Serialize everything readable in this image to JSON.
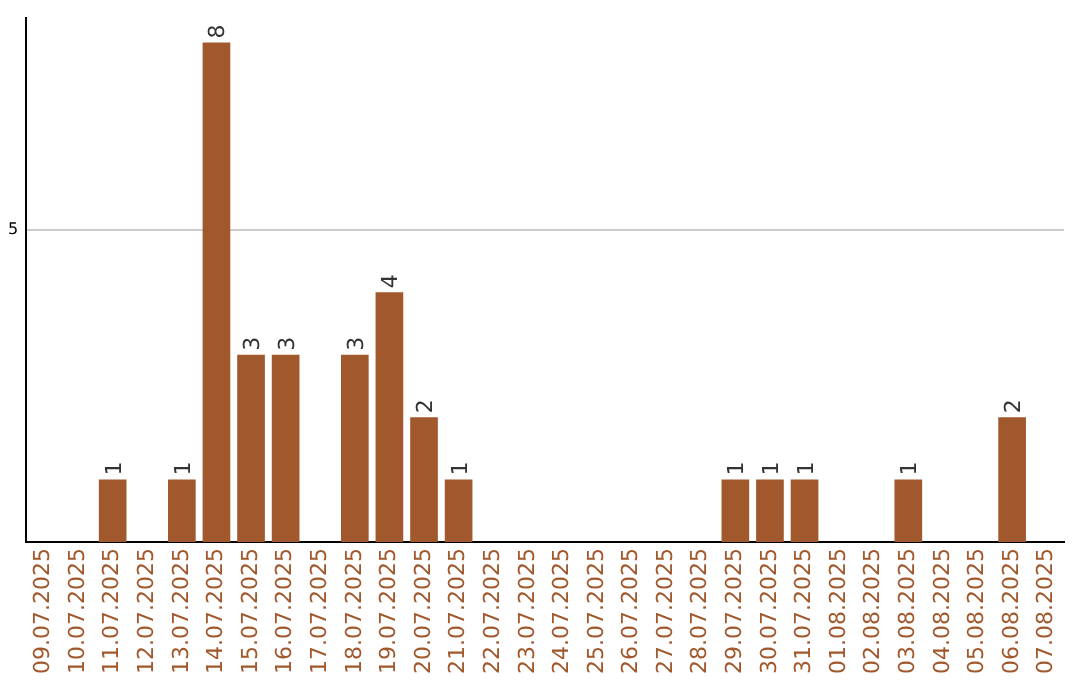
{
  "chart_data": {
    "type": "bar",
    "categories": [
      "09.07.2025",
      "10.07.2025",
      "11.07.2025",
      "12.07.2025",
      "13.07.2025",
      "14.07.2025",
      "15.07.2025",
      "16.07.2025",
      "17.07.2025",
      "18.07.2025",
      "19.07.2025",
      "20.07.2025",
      "21.07.2025",
      "22.07.2025",
      "23.07.2025",
      "24.07.2025",
      "25.07.2025",
      "26.07.2025",
      "27.07.2025",
      "28.07.2025",
      "29.07.2025",
      "30.07.2025",
      "31.07.2025",
      "01.08.2025",
      "02.08.2025",
      "03.08.2025",
      "04.08.2025",
      "05.08.2025",
      "06.08.2025",
      "07.08.2025"
    ],
    "values": [
      null,
      null,
      1,
      null,
      1,
      8,
      3,
      3,
      null,
      3,
      4,
      2,
      1,
      null,
      null,
      null,
      null,
      null,
      null,
      null,
      1,
      1,
      1,
      null,
      null,
      1,
      null,
      null,
      2,
      null
    ],
    "color": "#a0582c",
    "ylim": [
      0,
      8.4
    ],
    "yticks": [
      5
    ],
    "grid": "y",
    "data_labels": true,
    "legend": false
  }
}
